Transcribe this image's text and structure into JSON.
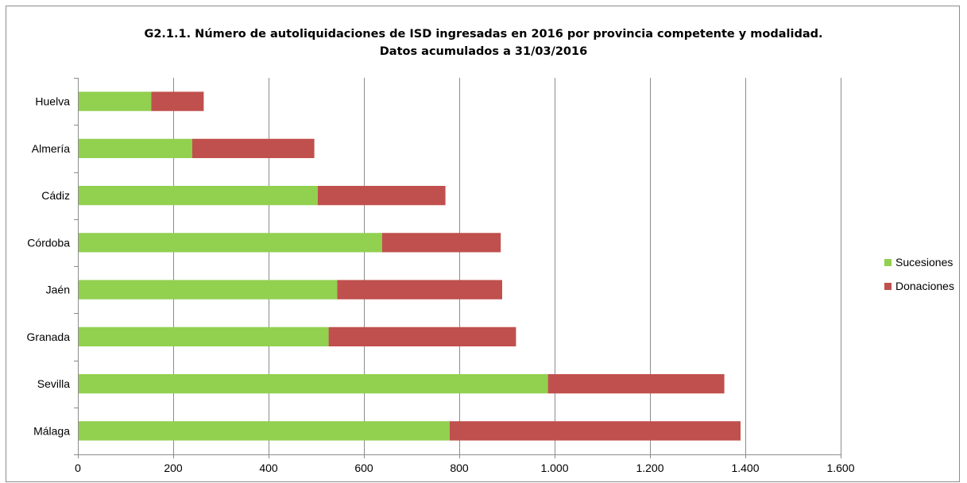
{
  "chart_data": {
    "type": "bar",
    "orientation": "horizontal",
    "stacked": true,
    "title": [
      "G2.1.1. Número de autoliquidaciones de ISD ingresadas en 2016 por provincia competente y modalidad.",
      "Datos acumulados a 31/03/2016"
    ],
    "categories": [
      "Huelva",
      "Almería",
      "Cádiz",
      "Córdoba",
      "Jaén",
      "Granada",
      "Sevilla",
      "Málaga"
    ],
    "series": [
      {
        "name": "Sucesiones",
        "color": "#92d050",
        "values": [
          154,
          240,
          503,
          638,
          544,
          526,
          986,
          780
        ]
      },
      {
        "name": "Donaciones",
        "color": "#c0504d",
        "values": [
          110,
          256,
          268,
          249,
          346,
          393,
          370,
          610
        ]
      }
    ],
    "xlim": [
      0,
      1600
    ],
    "xticks": [
      0,
      200,
      400,
      600,
      800,
      1000,
      1200,
      1400,
      1600
    ],
    "xtick_labels": [
      "0",
      "200",
      "400",
      "600",
      "800",
      "1.000",
      "1.200",
      "1.400",
      "1.600"
    ],
    "grid": true,
    "legend_position": "right"
  }
}
